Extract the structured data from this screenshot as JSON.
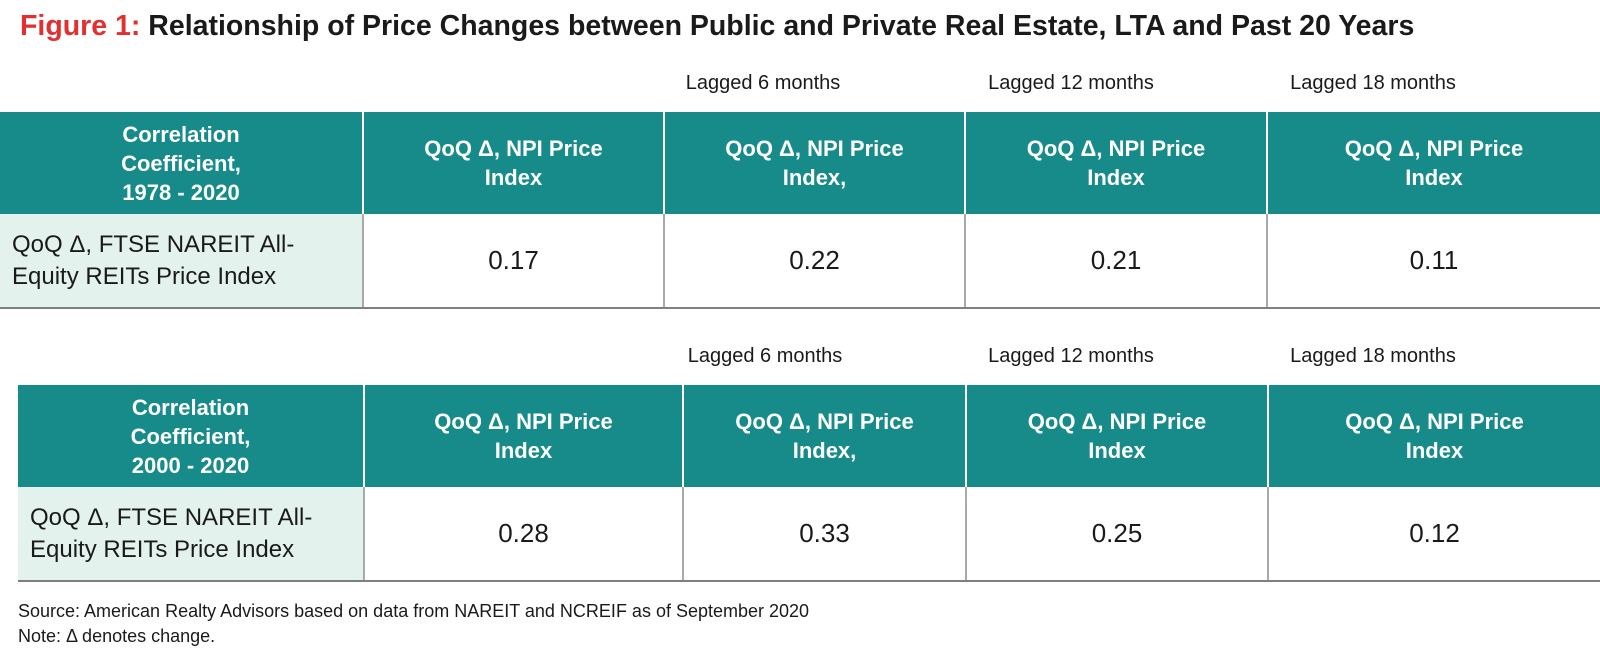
{
  "figure": {
    "label": "Figure 1:",
    "title": "Relationship of Price Changes between Public and Private Real Estate, LTA and Past 20 Years"
  },
  "tables": [
    {
      "lag_labels": [
        "Lagged 6 months",
        "Lagged 12 months",
        "Lagged 18 months"
      ],
      "header": {
        "row_header": [
          "Correlation",
          "Coefficient,",
          "1978 - 2020"
        ],
        "columns": [
          [
            "QoQ Δ, NPI Price",
            "Index"
          ],
          [
            "QoQ Δ, NPI Price",
            "Index,"
          ],
          [
            "QoQ Δ, NPI Price",
            "Index"
          ],
          [
            "QoQ Δ, NPI Price",
            "Index"
          ]
        ]
      },
      "row": {
        "label": [
          "QoQ Δ, FTSE NAREIT All-",
          "Equity REITs Price Index"
        ],
        "values": [
          "0.17",
          "0.22",
          "0.21",
          "0.11"
        ]
      }
    },
    {
      "lag_labels": [
        "Lagged 6 months",
        "Lagged 12 months",
        "Lagged 18 months"
      ],
      "header": {
        "row_header": [
          "Correlation",
          "Coefficient,",
          "2000 - 2020"
        ],
        "columns": [
          [
            "QoQ Δ, NPI Price",
            "Index"
          ],
          [
            "QoQ Δ, NPI Price",
            "Index,"
          ],
          [
            "QoQ Δ, NPI Price",
            "Index"
          ],
          [
            "QoQ Δ, NPI Price",
            "Index"
          ]
        ]
      },
      "row": {
        "label": [
          "QoQ Δ, FTSE NAREIT All-",
          "Equity REITs Price Index"
        ],
        "values": [
          "0.28",
          "0.33",
          "0.25",
          "0.12"
        ]
      }
    }
  ],
  "footer": {
    "source": "Source: American Realty Advisors based on data from NAREIT and NCREIF as of September 2020",
    "note": "Note: Δ denotes change."
  },
  "colors": {
    "header_bg": "#178b89",
    "row_label_bg": "#e3f2ec",
    "figure_label": "#e0302f"
  }
}
